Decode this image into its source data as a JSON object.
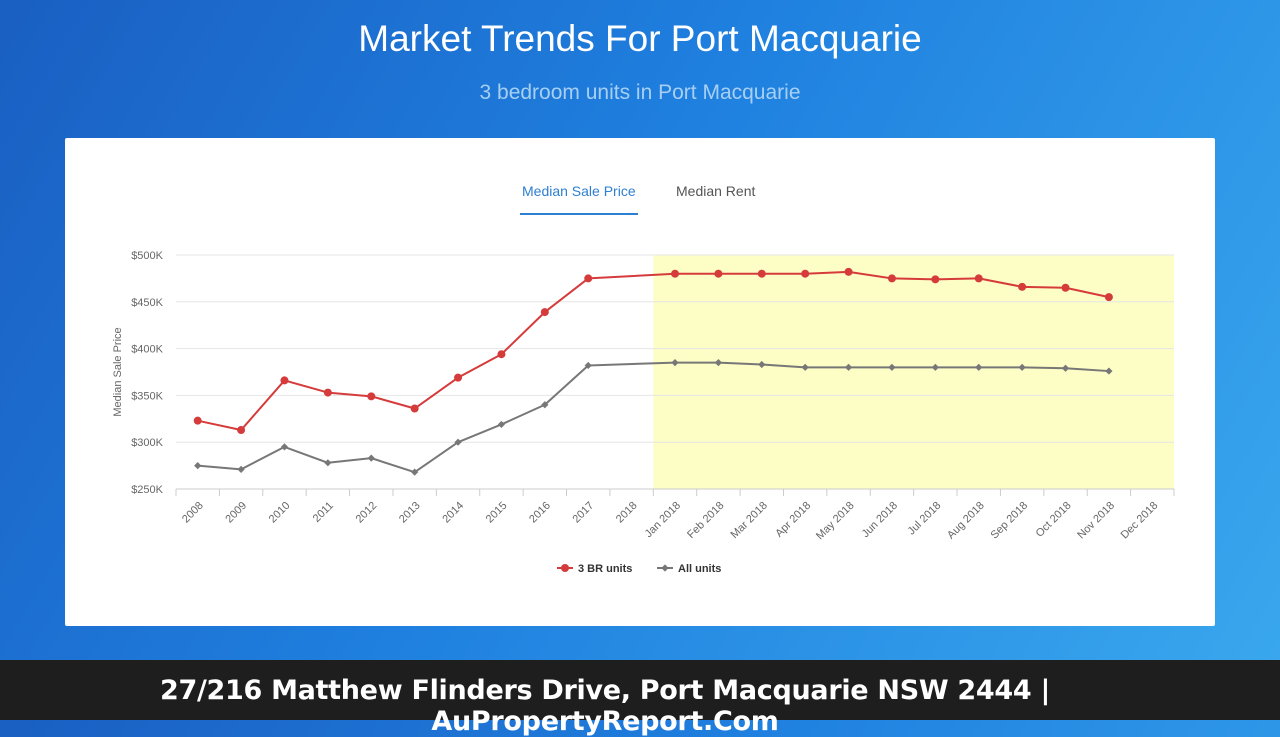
{
  "header": {
    "title": "Market Trends For Port Macquarie",
    "subtitle": "3 bedroom units in Port Macquarie"
  },
  "tabs": [
    {
      "label": "Median Sale Price",
      "active": true
    },
    {
      "label": "Median Rent",
      "active": false
    }
  ],
  "footer": {
    "text": "27/216 Matthew Flinders Drive, Port Macquarie NSW 2444 | AuPropertyReport.Com"
  },
  "colors": {
    "series_3br": "#d63b3b",
    "series_all": "#777777",
    "highlight": "#fdfdc6",
    "tab_active": "#2e7fd0"
  },
  "chart_data": {
    "type": "line",
    "title": "",
    "xlabel": "",
    "ylabel": "Median Sale Price",
    "categories": [
      "2008",
      "2009",
      "2010",
      "2011",
      "2012",
      "2013",
      "2014",
      "2015",
      "2016",
      "2017",
      "2018",
      "Jan 2018",
      "Feb 2018",
      "Mar 2018",
      "Apr 2018",
      "May 2018",
      "Jun 2018",
      "Jul 2018",
      "Aug 2018",
      "Sep 2018",
      "Oct 2018",
      "Nov 2018",
      "Dec 2018"
    ],
    "ylim": [
      250000,
      500000
    ],
    "yticks": [
      250000,
      300000,
      350000,
      400000,
      450000,
      500000
    ],
    "ytick_labels": [
      "$250K",
      "$300K",
      "$350K",
      "$400K",
      "$450K",
      "$500K"
    ],
    "grid": true,
    "legend_position": "bottom-center",
    "highlight_range": [
      "2018",
      "Dec 2018"
    ],
    "series": [
      {
        "name": "3 BR units",
        "marker": "circle",
        "values": [
          323000,
          313000,
          366000,
          353000,
          349000,
          336000,
          369000,
          394000,
          439000,
          475000,
          null,
          480000,
          480000,
          480000,
          480000,
          482000,
          475000,
          474000,
          475000,
          466000,
          465000,
          455000,
          null
        ]
      },
      {
        "name": "All units",
        "marker": "diamond",
        "values": [
          275000,
          271000,
          295000,
          278000,
          283000,
          268000,
          300000,
          319000,
          340000,
          382000,
          null,
          385000,
          385000,
          383000,
          380000,
          380000,
          380000,
          380000,
          380000,
          380000,
          379000,
          376000,
          null
        ]
      }
    ]
  }
}
